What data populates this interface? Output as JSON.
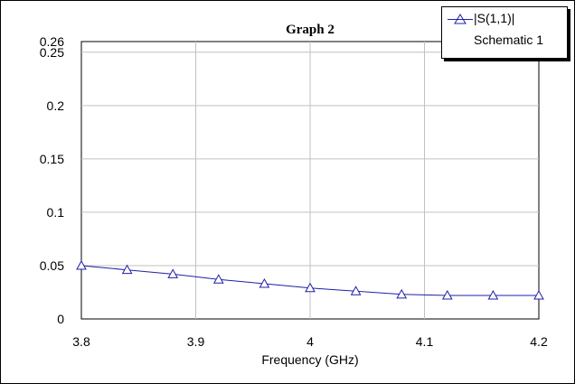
{
  "chart_data": {
    "type": "line",
    "title": "Graph 2",
    "xlabel": "Frequency (GHz)",
    "ylabel": "",
    "xlim": [
      3.8,
      4.2
    ],
    "ylim": [
      0,
      0.26
    ],
    "x_ticks": [
      "3.8",
      "3.9",
      "4",
      "4.1",
      "4.2"
    ],
    "x_tick_values": [
      3.8,
      3.9,
      4.0,
      4.1,
      4.2
    ],
    "y_ticks": [
      "0",
      "0.05",
      "0.1",
      "0.15",
      "0.2",
      "0.25",
      "0.26"
    ],
    "y_tick_values": [
      0,
      0.05,
      0.1,
      0.15,
      0.2,
      0.25,
      0.26
    ],
    "grid": true,
    "legend_position": "top-right",
    "series": [
      {
        "name": "|S(1,1)|",
        "subtitle": "Schematic 1",
        "color": "#1f1fa8",
        "marker": "triangle",
        "x": [
          3.8,
          3.84,
          3.88,
          3.92,
          3.96,
          4.0,
          4.04,
          4.08,
          4.12,
          4.16,
          4.2
        ],
        "y": [
          0.05,
          0.046,
          0.042,
          0.037,
          0.033,
          0.029,
          0.026,
          0.023,
          0.022,
          0.022,
          0.022
        ]
      }
    ]
  }
}
